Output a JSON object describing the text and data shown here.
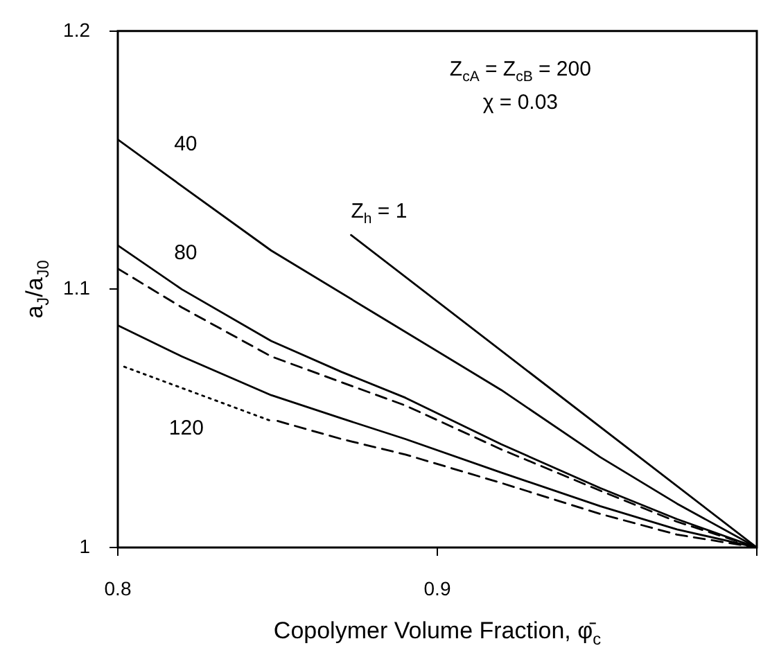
{
  "chart_data": {
    "type": "line",
    "xlabel": "Copolymer Volume Fraction, φ̄$_{c}$",
    "ylabel": "a$_{J}$/a$_{J0}$",
    "xlim": [
      0.8,
      1.0
    ],
    "xticks": [
      0.8,
      0.9,
      {
        "value": 1.0,
        "label": null
      }
    ],
    "ylim": [
      1,
      1.2
    ],
    "yticks": [
      1,
      1.1,
      1.2
    ],
    "grid": false,
    "legend": false,
    "marker": "none",
    "series": [
      {
        "color": "#000000",
        "line_style": "solid",
        "x": [
          0.8,
          0.82,
          0.848,
          0.88,
          0.92,
          0.951,
          0.975,
          1.0
        ],
        "values": [
          1.158,
          1.14,
          1.115,
          1.091,
          1.061,
          1.035,
          1.017,
          1.0
        ]
      },
      {
        "color": "#000000",
        "line_style": "solid",
        "x": [
          0.873,
          1.0
        ],
        "values": [
          1.121,
          1.0
        ]
      },
      {
        "color": "#000000",
        "line_style": "solid",
        "x": [
          0.8,
          0.82,
          0.848,
          0.87,
          0.89,
          0.92,
          0.951,
          0.975,
          1.0
        ],
        "values": [
          1.117,
          1.1,
          1.08,
          1.068,
          1.058,
          1.04,
          1.023,
          1.011,
          1.0
        ]
      },
      {
        "color": "#000000",
        "line_style": "dashed",
        "x": [
          0.8,
          0.82,
          0.848,
          0.87,
          0.89,
          0.92,
          0.951,
          0.975,
          1.0
        ],
        "values": [
          1.108,
          1.093,
          1.074,
          1.064,
          1.055,
          1.038,
          1.022,
          1.01,
          1.0
        ]
      },
      {
        "color": "#000000",
        "line_style": "solid",
        "x": [
          0.8,
          0.82,
          0.848,
          0.87,
          0.89,
          0.92,
          0.951,
          0.975,
          1.0
        ],
        "values": [
          1.086,
          1.074,
          1.059,
          1.05,
          1.042,
          1.029,
          1.016,
          1.007,
          1.0
        ]
      },
      {
        "color": "#000000",
        "line_style": "dotted",
        "x": [
          0.802,
          0.848
        ],
        "values": [
          1.07,
          1.049
        ]
      },
      {
        "color": "#000000",
        "line_style": "dashed",
        "x": [
          0.85,
          0.87,
          0.89,
          0.92,
          0.951,
          0.975,
          1.0
        ],
        "values": [
          1.049,
          1.042,
          1.036,
          1.025,
          1.013,
          1.005,
          1.0
        ]
      }
    ],
    "annotations": [
      "Z$_{cA}$ = Z$_{cB}$ = 200",
      "χ = 0.03",
      "40",
      "80",
      "120",
      "Z$_{h}$ = 1"
    ]
  }
}
